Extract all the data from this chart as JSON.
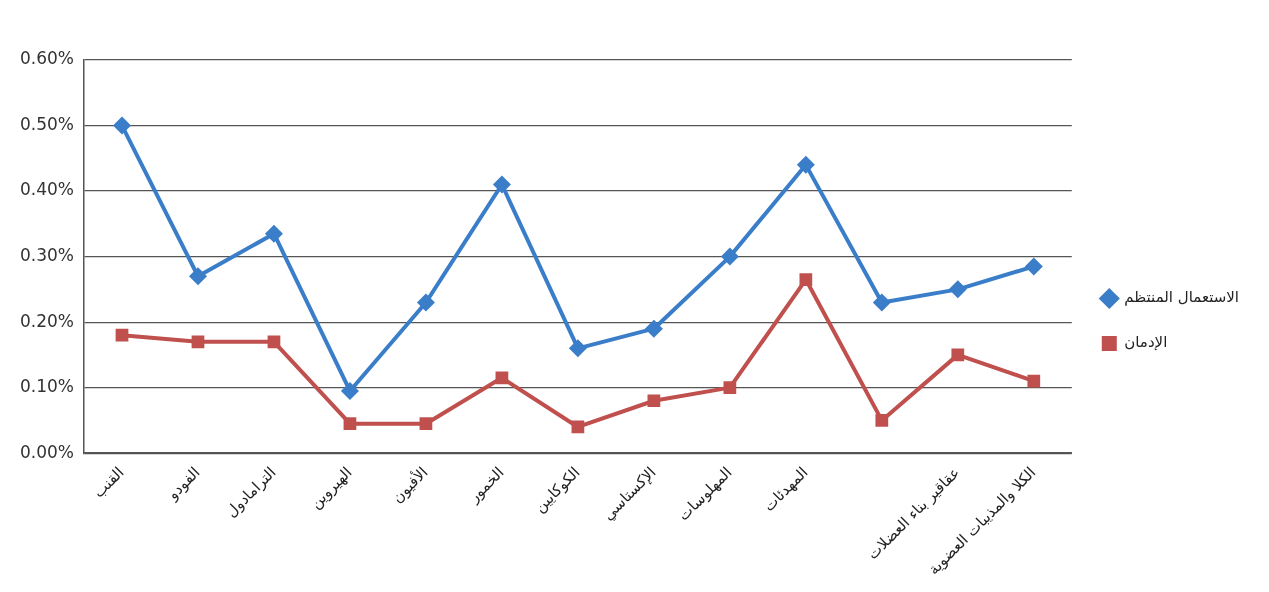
{
  "chart_data": {
    "type": "line",
    "categories": [
      "القنب",
      "الفودو",
      "الترامادول",
      "الهيروين",
      "الأفيون",
      "الخمور",
      "الكوكايين",
      "الإكستاسي",
      "المهلوسات",
      "المهدئات",
      null,
      "عقاقير بناء العضلات",
      "الكلا والمذيبات العضوية"
    ],
    "series": [
      {
        "name": "الاستعمال المنتظم",
        "color": "#3a7dc9",
        "marker": "diamond",
        "values": [
          0.5,
          0.27,
          0.335,
          0.095,
          0.23,
          0.41,
          0.16,
          0.19,
          0.3,
          0.44,
          0.23,
          0.25,
          0.285
        ]
      },
      {
        "name": "الإدمان",
        "color": "#c0504d",
        "marker": "square",
        "values": [
          0.18,
          0.17,
          0.17,
          0.045,
          0.045,
          0.115,
          0.04,
          0.08,
          0.1,
          0.265,
          0.05,
          0.15,
          0.11
        ]
      }
    ],
    "ylim": [
      0,
      0.6
    ],
    "yticks": [
      {
        "value": 0,
        "label": "0.00%"
      },
      {
        "value": 0.1,
        "label": "0.10%"
      },
      {
        "value": 0.2,
        "label": "0.20%"
      },
      {
        "value": 0.3,
        "label": "0.30%"
      },
      {
        "value": 0.4,
        "label": "0.40%"
      },
      {
        "value": 0.5,
        "label": "0.50%"
      },
      {
        "value": 0.6,
        "label": "0.60%"
      }
    ],
    "grid": "y",
    "legend": "right"
  }
}
